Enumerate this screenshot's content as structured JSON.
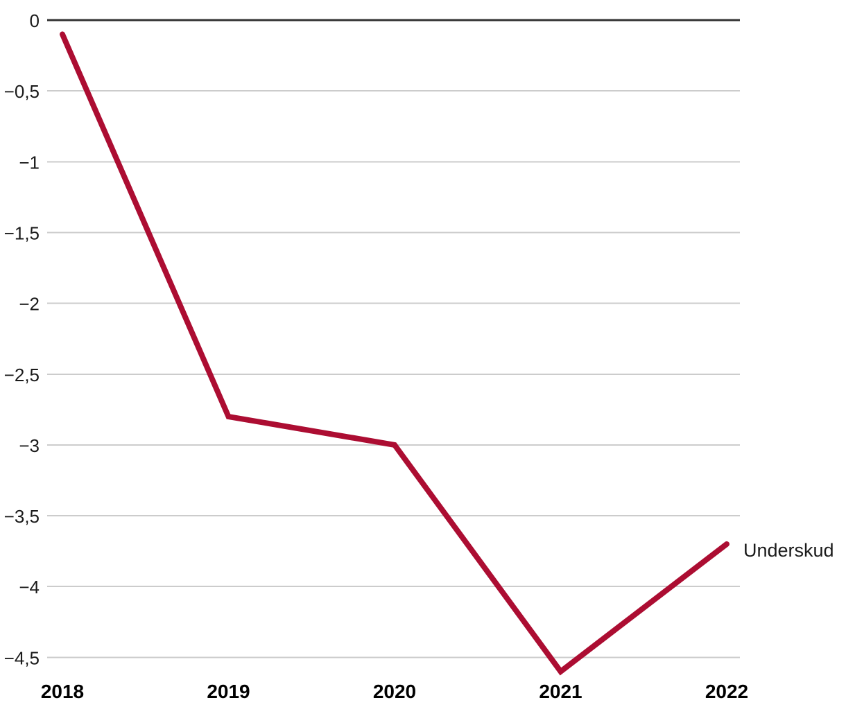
{
  "chart_data": {
    "type": "line",
    "title": "",
    "xlabel": "",
    "ylabel": "",
    "categories": [
      "2018",
      "2019",
      "2020",
      "2021",
      "2022"
    ],
    "series": [
      {
        "name": "Underskud",
        "values": [
          -0.1,
          -2.8,
          -3.0,
          -4.6,
          -3.7
        ],
        "color": "#ac0d32",
        "label_position": "right-of-last-point"
      }
    ],
    "ylim": [
      -4.5,
      0
    ],
    "y_ticks": [
      0,
      -0.5,
      -1,
      -1.5,
      -2,
      -2.5,
      -3,
      -3.5,
      -4,
      -4.5
    ],
    "y_tick_labels": [
      "0",
      "−0,5",
      "−1",
      "−1,5",
      "−2",
      "−2,5",
      "−3",
      "−3,5",
      "−4",
      "−4,5"
    ],
    "decimal_separator": ",",
    "grid": "horizontal",
    "legend_position": "none (series name drawn at line end)",
    "colors": {
      "line": "#ac0d32",
      "zero_line": "#333333",
      "gridline": "#cccccc",
      "y_tick_text": "#1a1a1a",
      "x_tick_text": "#000000",
      "series_label_text": "#1a1a1a",
      "background": "#ffffff"
    }
  }
}
